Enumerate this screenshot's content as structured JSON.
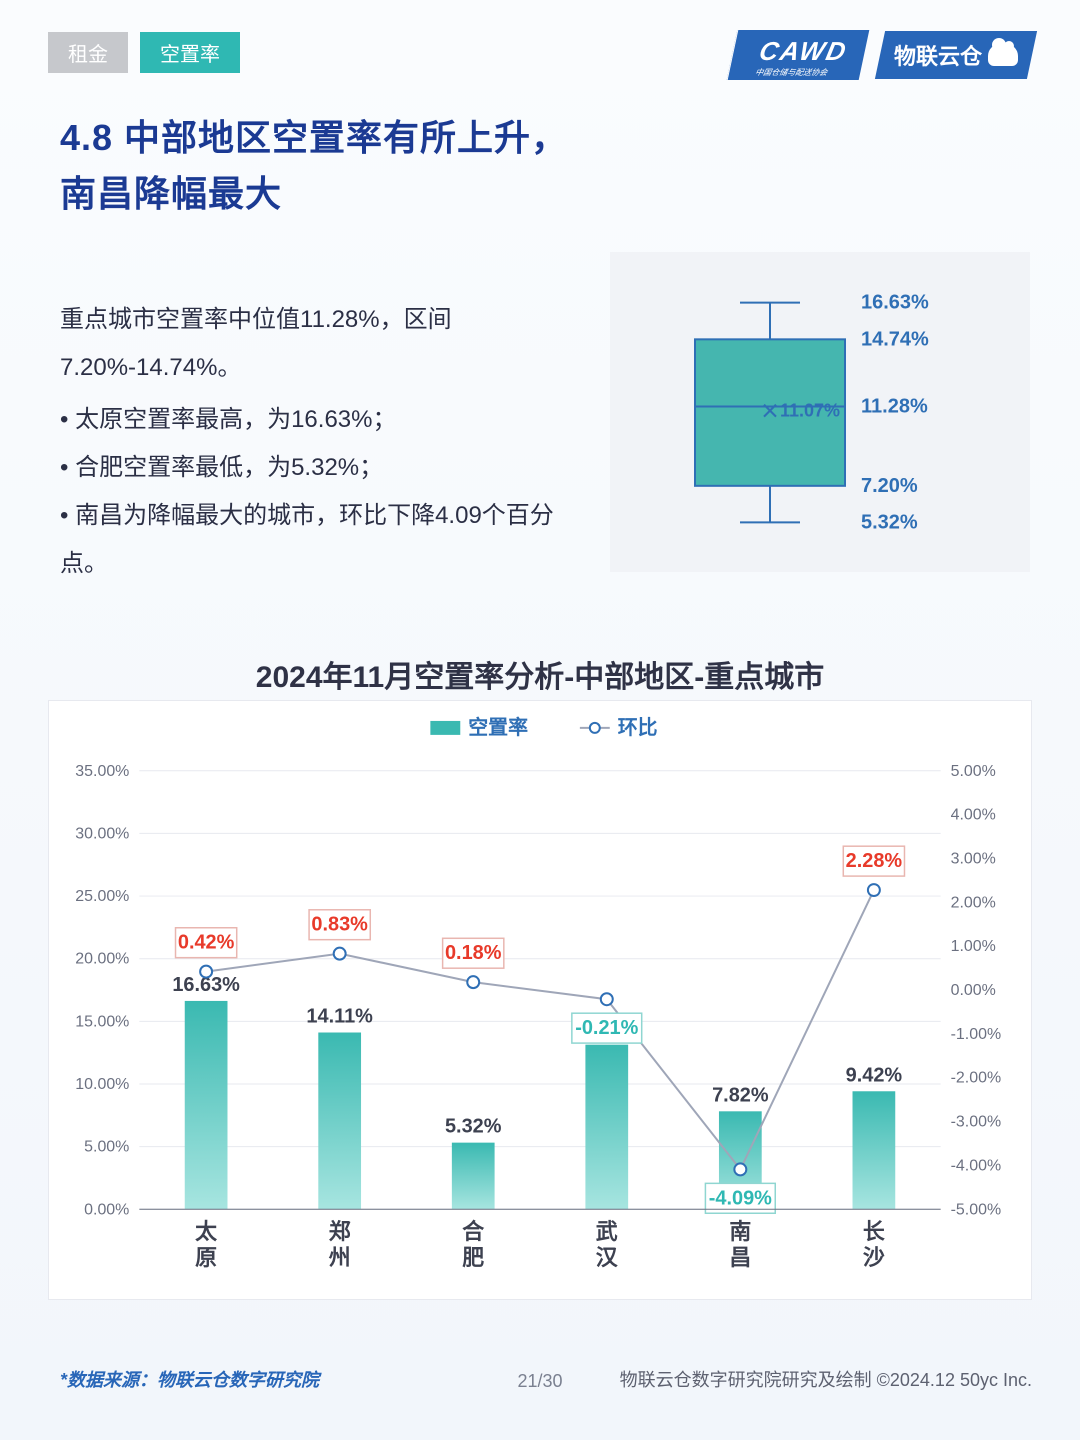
{
  "tabs": {
    "inactive": "租金",
    "active": "空置率"
  },
  "logos": {
    "cawd": "CAWD",
    "cawd_sub": "中国仓储与配送协会",
    "wlyc": "物联云仓"
  },
  "headline_l1": "4.8 中部地区空置率有所上升，",
  "headline_l2": "南昌降幅最大",
  "body": {
    "intro": "重点城市空置率中位值11.28%，区间7.20%-14.74%。",
    "bullet1": "太原空置率最高，为16.63%；",
    "bullet2": "合肥空置率最低，为5.32%；",
    "bullet3": "南昌为降幅最大的城市，环比下降4.09个百分点。"
  },
  "boxplot": {
    "max_label": "16.63%",
    "max": 16.63,
    "q3_label": "14.74%",
    "q3": 14.74,
    "med_label": "11.28%",
    "median": 11.28,
    "mean_label": "11.07%",
    "mean": 11.07,
    "q1_label": "7.20%",
    "q1": 7.2,
    "min_label": "5.32%",
    "min": 5.32,
    "y_domain": [
      4,
      18
    ],
    "box_fill": "#45b6af",
    "stroke": "#2f6fb5",
    "text_color": "#2f6fb5",
    "panel_bg": "#f1f3f7"
  },
  "chart": {
    "title": "2024年11月空置率分析-中部地区-重点城市",
    "legend_bar": "空置率",
    "legend_line": "环比",
    "categories": [
      "太原",
      "郑州",
      "合肥",
      "武汉",
      "南昌",
      "长沙"
    ],
    "bar_values": [
      16.63,
      14.11,
      5.32,
      13.14,
      7.82,
      9.42
    ],
    "bar_labels": [
      "16.63%",
      "14.11%",
      "5.32%",
      "13.14%",
      "7.82%",
      "9.42%"
    ],
    "line_values": [
      0.42,
      0.83,
      0.18,
      -0.21,
      -4.09,
      2.28
    ],
    "line_labels": [
      "0.42%",
      "0.83%",
      "0.18%",
      "-0.21%",
      "-4.09%",
      "2.28%"
    ],
    "left_axis": {
      "min": 0,
      "max": 35,
      "step": 5,
      "ticks": [
        "0.00%",
        "5.00%",
        "10.00%",
        "15.00%",
        "20.00%",
        "25.00%",
        "30.00%",
        "35.00%"
      ]
    },
    "right_axis": {
      "min": -5,
      "max": 5,
      "step": 1,
      "ticks": [
        "-5.00%",
        "-4.00%",
        "-3.00%",
        "-2.00%",
        "-1.00%",
        "0.00%",
        "1.00%",
        "2.00%",
        "3.00%",
        "4.00%",
        "5.00%"
      ]
    },
    "colors": {
      "bar_top": "#3ab9b1",
      "bar_bottom": "#a7e5e0",
      "line": "#9fa6b8",
      "marker_fill": "#ffffff",
      "marker_stroke": "#2f6fb5",
      "grid": "#e7e9ef",
      "axis_text": "#6b7080",
      "bar_label": "#3d4150",
      "pos_box_border": "#e9b6b0",
      "pos_box_text": "#e83a2a",
      "neg_box_border": "#8fd6d1",
      "neg_box_text": "#2fb8b3",
      "cat_text": "#3d4150",
      "legend_text": "#2f6fb5"
    },
    "bar_width_ratio": 0.32,
    "label_fontsize": 20,
    "axis_fontsize": 16,
    "cat_fontsize": 22
  },
  "footer": {
    "source": "*数据来源：物联云仓数字研究院",
    "page": "21/30",
    "credit": "物联云仓数字研究院研究及绘制  ©2024.12 50yc Inc."
  }
}
